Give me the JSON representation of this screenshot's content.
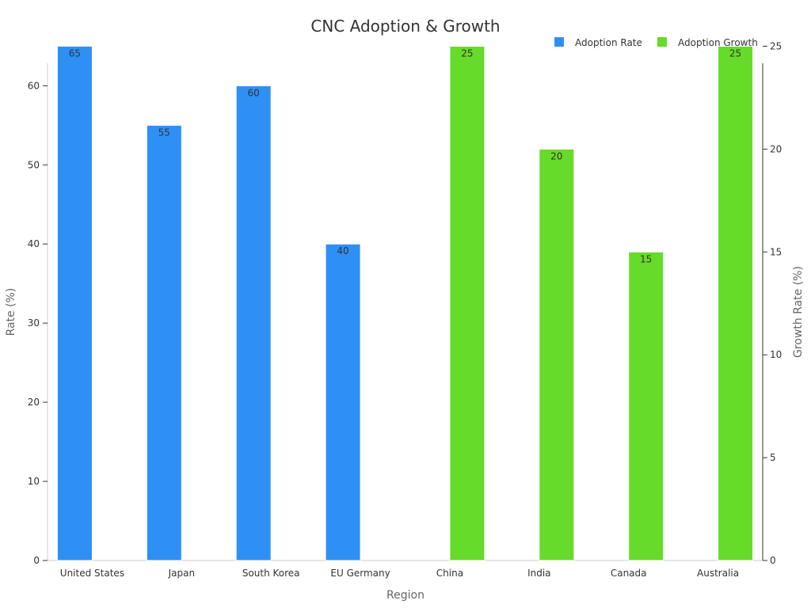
{
  "chart_data": {
    "type": "bar",
    "title": "CNC Adoption & Growth",
    "categories": [
      "United States",
      "Japan",
      "South Korea",
      "EU Germany",
      "China",
      "India",
      "Canada",
      "Australia"
    ],
    "series": [
      {
        "name": "Adoption Rate",
        "axis": "left",
        "color": "#2E90F5",
        "values": [
          65,
          55,
          60,
          40,
          null,
          null,
          null,
          null
        ]
      },
      {
        "name": "Adoption Growth",
        "axis": "right",
        "color": "#66DB29",
        "values": [
          null,
          null,
          null,
          null,
          25,
          20,
          15,
          25
        ]
      }
    ],
    "xlabel": "Region",
    "ylabel": "Rate (%)",
    "y2label": "Growth Rate (%)",
    "ylim": [
      0,
      68.5
    ],
    "y2lim": [
      0,
      26.35
    ],
    "yticks": [
      0,
      10,
      20,
      30,
      40,
      50,
      60
    ],
    "y2ticks": [
      0,
      5,
      10,
      15,
      20,
      25
    ],
    "legend_position": "top-right",
    "grid": false
  }
}
